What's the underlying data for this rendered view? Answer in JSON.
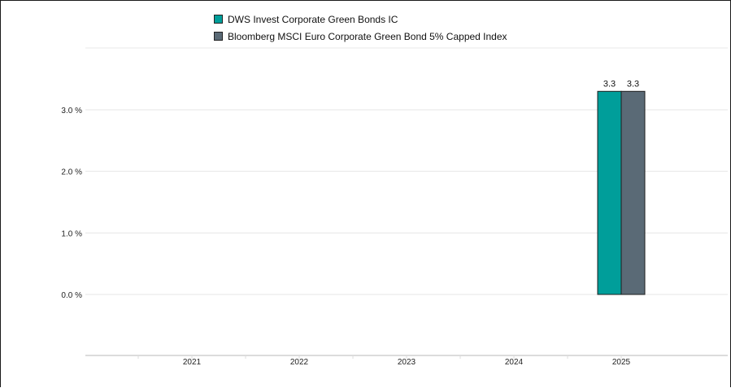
{
  "chart_data": {
    "type": "bar",
    "categories": [
      "2021",
      "2022",
      "2023",
      "2024",
      "2025"
    ],
    "series": [
      {
        "name": "DWS Invest Corporate Green Bonds IC",
        "color": "#009e9a",
        "values": [
          null,
          null,
          null,
          null,
          3.3
        ]
      },
      {
        "name": "Bloomberg MSCI Euro Corporate Green Bond 5% Capped Index",
        "color": "#5a6a76",
        "values": [
          null,
          null,
          null,
          null,
          3.3
        ]
      }
    ],
    "data_labels": [
      "3.3",
      "3.3"
    ],
    "y_ticks": [
      {
        "value": 0,
        "label": "0.0 %"
      },
      {
        "value": 1,
        "label": "1.0 %"
      },
      {
        "value": 2,
        "label": "2.0 %"
      },
      {
        "value": 3,
        "label": "3.0 %"
      }
    ],
    "ylim": [
      -1,
      4
    ],
    "grid": true,
    "legend_position": "top-center",
    "title": "",
    "xlabel": "",
    "ylabel": ""
  }
}
